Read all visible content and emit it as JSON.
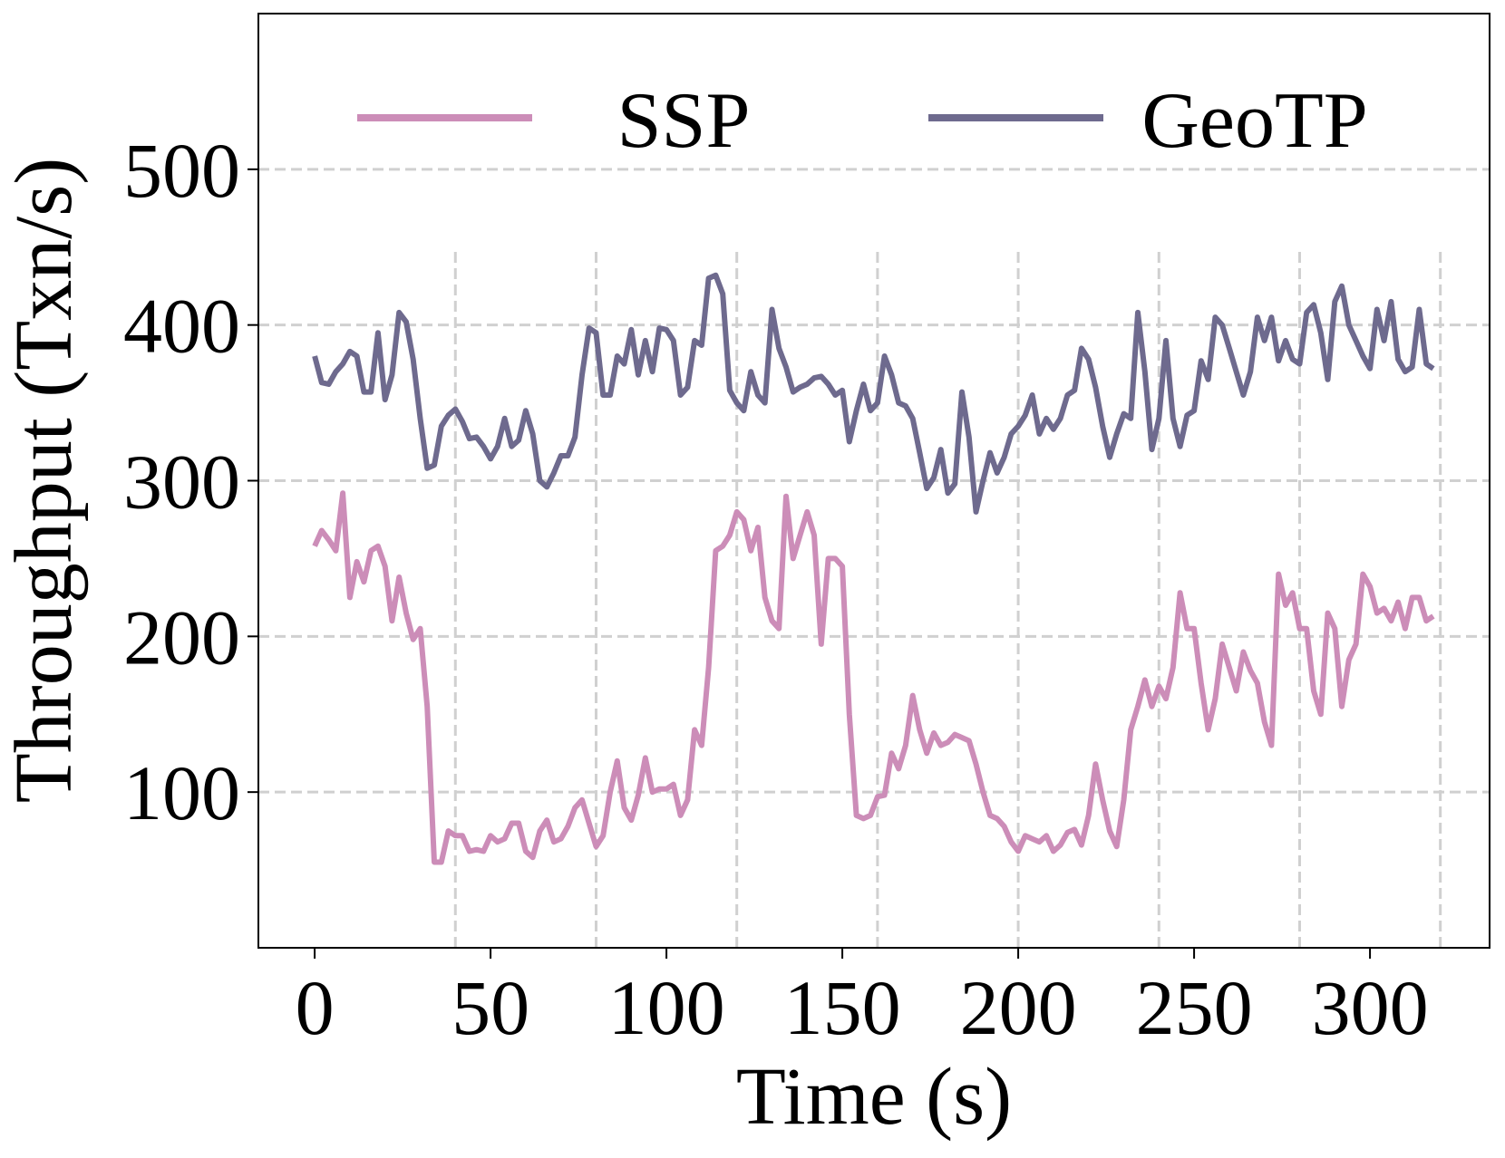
{
  "chart_data": {
    "type": "line",
    "x_label": "Time (s)",
    "y_label": "Throughput (Txn/s)",
    "x": [
      0,
      2,
      4,
      6,
      8,
      10,
      12,
      14,
      16,
      18,
      20,
      22,
      24,
      26,
      28,
      30,
      32,
      34,
      36,
      38,
      40,
      42,
      44,
      46,
      48,
      50,
      52,
      54,
      56,
      58,
      60,
      62,
      64,
      66,
      68,
      70,
      72,
      74,
      76,
      78,
      80,
      82,
      84,
      86,
      88,
      90,
      92,
      94,
      96,
      98,
      100,
      102,
      104,
      106,
      108,
      110,
      112,
      114,
      116,
      118,
      120,
      122,
      124,
      126,
      128,
      130,
      132,
      134,
      136,
      138,
      140,
      142,
      144,
      146,
      148,
      150,
      152,
      154,
      156,
      158,
      160,
      162,
      164,
      166,
      168,
      170,
      172,
      174,
      176,
      178,
      180,
      182,
      184,
      186,
      188,
      190,
      192,
      194,
      196,
      198,
      200,
      202,
      204,
      206,
      208,
      210,
      212,
      214,
      216,
      218,
      220,
      222,
      224,
      226,
      228,
      230,
      232,
      234,
      236,
      238,
      240,
      242,
      244,
      246,
      248,
      250,
      252,
      254,
      256,
      258,
      260,
      262,
      264,
      266,
      268,
      270,
      272,
      274,
      276,
      278,
      280,
      282,
      284,
      286,
      288,
      290,
      292,
      294,
      296,
      298,
      300,
      302,
      304,
      306,
      308,
      310,
      312,
      314,
      316,
      318
    ],
    "series": [
      {
        "name": "SSP",
        "color": "#cc8db8",
        "values": [
          258,
          268,
          262,
          255,
          292,
          225,
          248,
          235,
          255,
          258,
          245,
          210,
          238,
          215,
          198,
          205,
          155,
          55,
          55,
          75,
          72,
          72,
          62,
          63,
          62,
          72,
          68,
          70,
          80,
          80,
          62,
          58,
          75,
          82,
          68,
          70,
          78,
          90,
          95,
          80,
          65,
          72,
          100,
          120,
          90,
          82,
          98,
          122,
          100,
          102,
          102,
          105,
          85,
          95,
          140,
          130,
          180,
          255,
          258,
          265,
          280,
          275,
          255,
          270,
          225,
          210,
          205,
          290,
          250,
          265,
          280,
          265,
          195,
          250,
          250,
          245,
          150,
          85,
          83,
          85,
          97,
          98,
          125,
          115,
          130,
          162,
          140,
          125,
          138,
          130,
          132,
          137,
          135,
          133,
          118,
          100,
          85,
          83,
          78,
          68,
          62,
          72,
          70,
          68,
          72,
          62,
          66,
          74,
          76,
          66,
          85,
          118,
          95,
          75,
          65,
          95,
          140,
          155,
          172,
          155,
          168,
          160,
          180,
          228,
          205,
          205,
          170,
          140,
          160,
          195,
          180,
          165,
          190,
          178,
          170,
          145,
          130,
          240,
          220,
          228,
          205,
          205,
          165,
          150,
          215,
          205,
          155,
          185,
          195,
          240,
          232,
          215,
          218,
          210,
          222,
          205,
          225,
          225,
          210,
          213
        ]
      },
      {
        "name": "GeoTP",
        "color": "#6e6a8e",
        "values": [
          380,
          363,
          362,
          370,
          375,
          383,
          380,
          357,
          357,
          395,
          352,
          368,
          408,
          402,
          378,
          340,
          308,
          310,
          335,
          342,
          346,
          338,
          327,
          328,
          322,
          314,
          322,
          340,
          322,
          326,
          345,
          330,
          300,
          296,
          305,
          316,
          316,
          328,
          368,
          398,
          395,
          355,
          355,
          380,
          375,
          397,
          368,
          390,
          370,
          398,
          397,
          390,
          355,
          360,
          390,
          387,
          430,
          432,
          420,
          358,
          350,
          345,
          370,
          355,
          350,
          410,
          385,
          373,
          357,
          360,
          362,
          366,
          367,
          362,
          355,
          358,
          325,
          345,
          362,
          345,
          350,
          380,
          368,
          350,
          348,
          340,
          318,
          295,
          302,
          320,
          292,
          298,
          357,
          328,
          280,
          300,
          318,
          305,
          315,
          330,
          335,
          342,
          355,
          330,
          340,
          333,
          340,
          355,
          358,
          385,
          378,
          360,
          335,
          315,
          330,
          343,
          340,
          408,
          370,
          320,
          340,
          390,
          340,
          322,
          342,
          345,
          377,
          365,
          405,
          400,
          385,
          370,
          355,
          370,
          405,
          390,
          405,
          377,
          390,
          378,
          375,
          408,
          413,
          395,
          365,
          415,
          425,
          400,
          390,
          380,
          372,
          410,
          390,
          415,
          378,
          370,
          373,
          410,
          375,
          372
        ]
      }
    ],
    "xlim": [
      -16,
      334
    ],
    "ylim": [
      0,
      600
    ],
    "xticks": [
      0,
      50,
      100,
      150,
      200,
      250,
      300
    ],
    "yticks": [
      100,
      200,
      300,
      400,
      500
    ],
    "grid": "y",
    "vlines": {
      "x": [
        40,
        80,
        120,
        160,
        200,
        240,
        280,
        320
      ],
      "ymax": 450
    },
    "legend": "upper center"
  }
}
